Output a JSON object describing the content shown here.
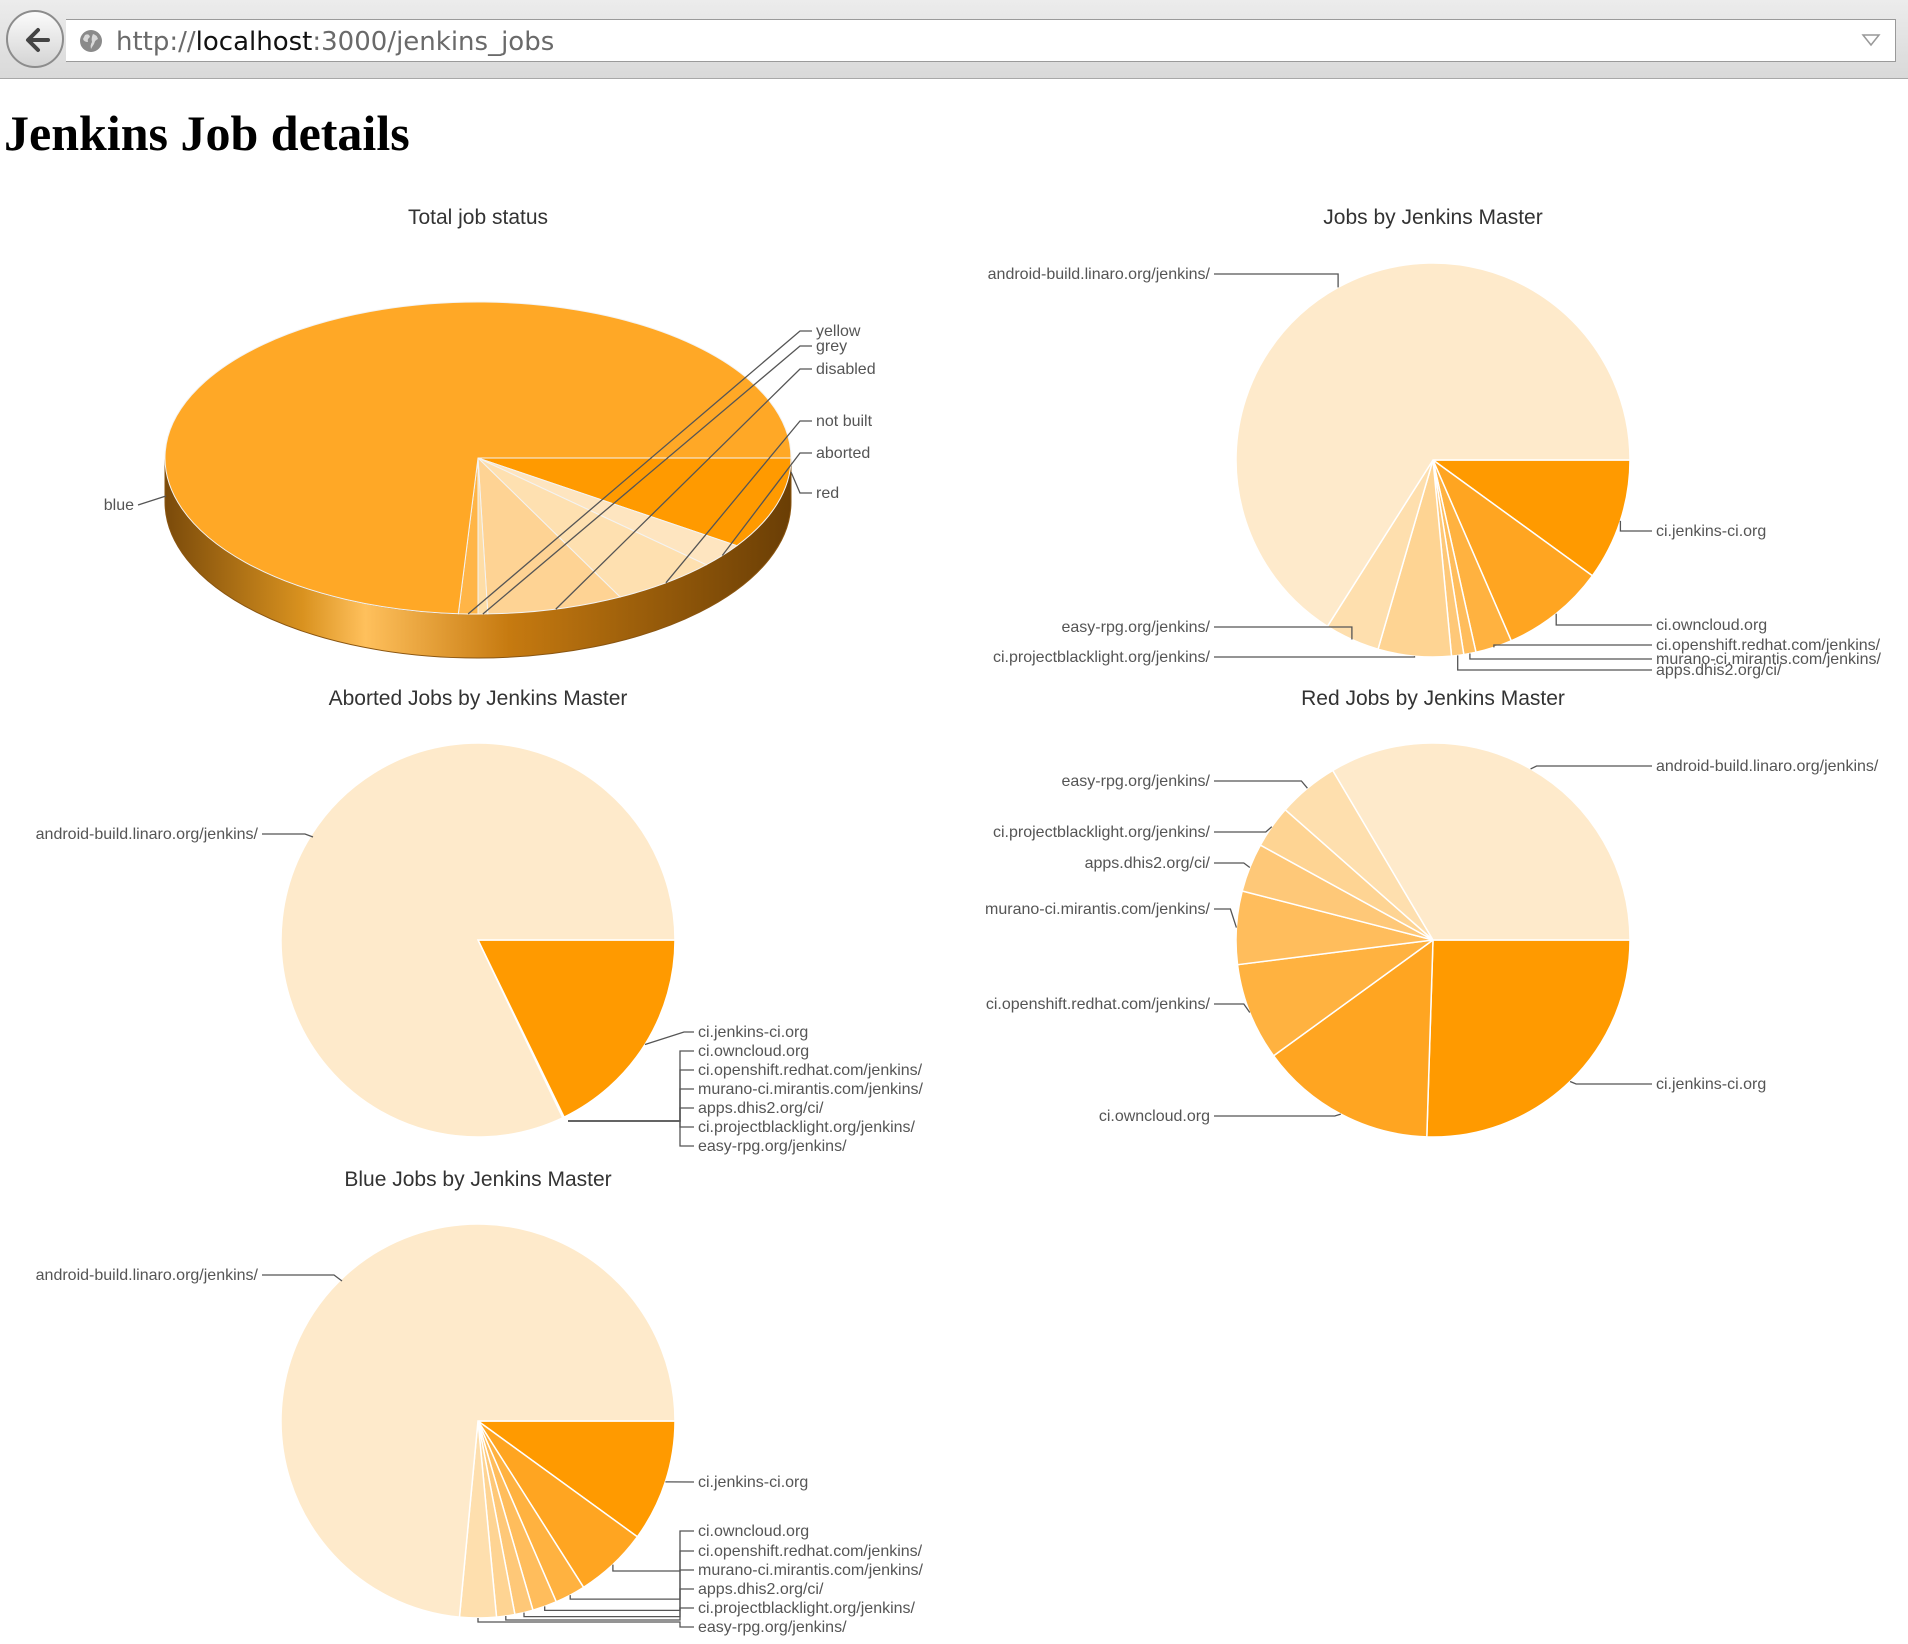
{
  "browser": {
    "url_scheme": "http://",
    "url_host": "localhost",
    "url_path": ":3000/jenkins_jobs"
  },
  "page": {
    "title": "Jenkins Job details"
  },
  "colors": {
    "pie_light": "#FEEACB",
    "pie_strong": "#FF9A00",
    "pie_main": "#FFA826",
    "line": "#555555"
  },
  "chart_data": [
    {
      "id": "total-status",
      "type": "pie",
      "style": "3d",
      "title": "Total job status",
      "slices": [
        {
          "label": "red",
          "value": 9.5,
          "color": "#FF9A00"
        },
        {
          "label": "aborted",
          "value": 2.5,
          "color": "#FEE5C0"
        },
        {
          "label": "not built",
          "value": 5.5,
          "color": "#FEE0B0"
        },
        {
          "label": "disabled",
          "value": 7,
          "color": "#FED394"
        },
        {
          "label": "grey",
          "value": 0.5,
          "color": "#FEDDA6"
        },
        {
          "label": "yellow",
          "value": 1,
          "color": "#FFB547"
        },
        {
          "label": "blue",
          "value": 74,
          "color": "#FFA826"
        }
      ]
    },
    {
      "id": "by-master",
      "type": "pie",
      "title": "Jobs by Jenkins Master",
      "slices": [
        {
          "label": "ci.jenkins-ci.org",
          "value": 10,
          "color": "#FF9A00"
        },
        {
          "label": "ci.owncloud.org",
          "value": 8.5,
          "color": "#FFA521"
        },
        {
          "label": "ci.openshift.redhat.com/jenkins/",
          "value": 3,
          "color": "#FFB240"
        },
        {
          "label": "murano-ci.mirantis.com/jenkins/",
          "value": 1,
          "color": "#FFBD5C"
        },
        {
          "label": "apps.dhis2.org/ci/",
          "value": 1,
          "color": "#FEC878"
        },
        {
          "label": "ci.projectblacklight.org/jenkins/",
          "value": 6,
          "color": "#FED493"
        },
        {
          "label": "easy-rpg.org/jenkins/",
          "value": 4.5,
          "color": "#FEDFAE"
        },
        {
          "label": "android-build.linaro.org/jenkins/",
          "value": 66,
          "color": "#FEEACB"
        }
      ]
    },
    {
      "id": "aborted-by-master",
      "type": "pie",
      "title": "Aborted Jobs by Jenkins Master",
      "slices": [
        {
          "label": "ci.jenkins-ci.org",
          "value": 17.8,
          "color": "#FF9A00"
        },
        {
          "label": "ci.owncloud.org",
          "value": 0.02,
          "color": "#FFA521"
        },
        {
          "label": "ci.openshift.redhat.com/jenkins/",
          "value": 0.02,
          "color": "#FFB240"
        },
        {
          "label": "murano-ci.mirantis.com/jenkins/",
          "value": 0.02,
          "color": "#FFBD5C"
        },
        {
          "label": "apps.dhis2.org/ci/",
          "value": 0.02,
          "color": "#FEC878"
        },
        {
          "label": "ci.projectblacklight.org/jenkins/",
          "value": 0.02,
          "color": "#FED493"
        },
        {
          "label": "easy-rpg.org/jenkins/",
          "value": 0.02,
          "color": "#FEDFAE"
        },
        {
          "label": "android-build.linaro.org/jenkins/",
          "value": 82.1,
          "color": "#FEEACB"
        }
      ]
    },
    {
      "id": "red-by-master",
      "type": "pie",
      "title": "Red Jobs by Jenkins Master",
      "slices": [
        {
          "label": "ci.jenkins-ci.org",
          "value": 25.5,
          "color": "#FF9A00"
        },
        {
          "label": "ci.owncloud.org",
          "value": 14.5,
          "color": "#FFA521"
        },
        {
          "label": "ci.openshift.redhat.com/jenkins/",
          "value": 8,
          "color": "#FFB240"
        },
        {
          "label": "murano-ci.mirantis.com/jenkins/",
          "value": 6,
          "color": "#FFBD5C"
        },
        {
          "label": "apps.dhis2.org/ci/",
          "value": 4,
          "color": "#FEC878"
        },
        {
          "label": "ci.projectblacklight.org/jenkins/",
          "value": 3.5,
          "color": "#FED493"
        },
        {
          "label": "easy-rpg.org/jenkins/",
          "value": 5,
          "color": "#FEDFAE"
        },
        {
          "label": "android-build.linaro.org/jenkins/",
          "value": 33.5,
          "color": "#FEEACB"
        }
      ]
    },
    {
      "id": "blue-by-master",
      "type": "pie",
      "title": "Blue Jobs by Jenkins Master",
      "slices": [
        {
          "label": "ci.jenkins-ci.org",
          "value": 10,
          "color": "#FF9A00"
        },
        {
          "label": "ci.owncloud.org",
          "value": 6,
          "color": "#FFA521"
        },
        {
          "label": "ci.openshift.redhat.com/jenkins/",
          "value": 2.5,
          "color": "#FFB240"
        },
        {
          "label": "murano-ci.mirantis.com/jenkins/",
          "value": 2,
          "color": "#FFBD5C"
        },
        {
          "label": "apps.dhis2.org/ci/",
          "value": 1.5,
          "color": "#FEC878"
        },
        {
          "label": "ci.projectblacklight.org/jenkins/",
          "value": 1.5,
          "color": "#FED493"
        },
        {
          "label": "easy-rpg.org/jenkins/",
          "value": 3,
          "color": "#FEDFAE"
        },
        {
          "label": "android-build.linaro.org/jenkins/",
          "value": 73.5,
          "color": "#FEEACB"
        }
      ]
    }
  ]
}
